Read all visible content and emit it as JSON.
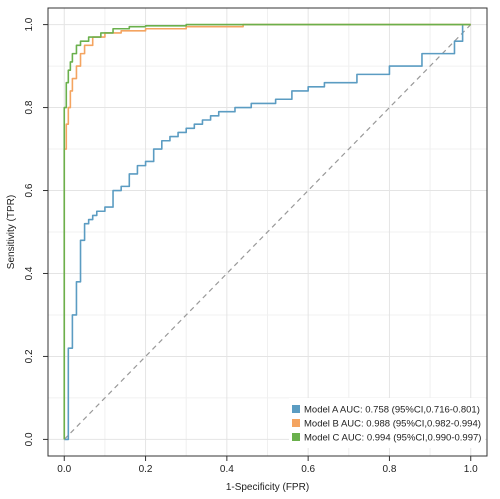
{
  "chart_data": {
    "type": "line",
    "xlabel": "1-Specificity (FPR)",
    "ylabel": "Sensitivity (TPR)",
    "xlim": [
      0,
      1
    ],
    "ylim": [
      0,
      1
    ],
    "xticks": [
      "0.0",
      "0.2",
      "0.4",
      "0.6",
      "0.8",
      "1.0"
    ],
    "yticks": [
      "0.0",
      "0.2",
      "0.4",
      "0.6",
      "0.8",
      "1.0"
    ],
    "grid": true,
    "legend_position": "bottom-right",
    "reference_line": {
      "from": [
        0,
        0
      ],
      "to": [
        1,
        1
      ],
      "style": "dashed",
      "color": "#999999"
    },
    "series": [
      {
        "name": "Model A AUC: 0.758 (95%CI,0.716-0.801)",
        "color": "#5b9cc2",
        "x": [
          0.0,
          0.01,
          0.01,
          0.02,
          0.02,
          0.03,
          0.03,
          0.04,
          0.04,
          0.05,
          0.05,
          0.06,
          0.06,
          0.07,
          0.07,
          0.08,
          0.08,
          0.1,
          0.1,
          0.12,
          0.12,
          0.14,
          0.14,
          0.16,
          0.16,
          0.18,
          0.18,
          0.2,
          0.2,
          0.22,
          0.22,
          0.24,
          0.24,
          0.26,
          0.26,
          0.28,
          0.28,
          0.3,
          0.3,
          0.32,
          0.32,
          0.34,
          0.34,
          0.36,
          0.36,
          0.38,
          0.38,
          0.42,
          0.42,
          0.46,
          0.46,
          0.52,
          0.52,
          0.56,
          0.56,
          0.6,
          0.6,
          0.64,
          0.64,
          0.72,
          0.72,
          0.8,
          0.8,
          0.88,
          0.88,
          0.96,
          0.96,
          0.98,
          0.98
        ],
        "y": [
          0.0,
          0.0,
          0.22,
          0.22,
          0.3,
          0.3,
          0.38,
          0.38,
          0.48,
          0.48,
          0.52,
          0.52,
          0.53,
          0.53,
          0.54,
          0.54,
          0.55,
          0.55,
          0.56,
          0.56,
          0.6,
          0.6,
          0.61,
          0.61,
          0.64,
          0.64,
          0.66,
          0.66,
          0.67,
          0.67,
          0.7,
          0.7,
          0.72,
          0.72,
          0.73,
          0.73,
          0.74,
          0.74,
          0.75,
          0.75,
          0.76,
          0.76,
          0.77,
          0.77,
          0.78,
          0.78,
          0.79,
          0.79,
          0.8,
          0.8,
          0.81,
          0.81,
          0.82,
          0.82,
          0.84,
          0.84,
          0.85,
          0.85,
          0.86,
          0.86,
          0.88,
          0.88,
          0.9,
          0.9,
          0.93,
          0.93,
          0.96,
          0.96,
          1.0
        ]
      },
      {
        "name": "Model B AUC: 0.988 (95%CI,0.982-0.994)",
        "color": "#f4a460",
        "x": [
          0.0,
          0.0,
          0.005,
          0.005,
          0.01,
          0.01,
          0.015,
          0.015,
          0.02,
          0.02,
          0.03,
          0.03,
          0.04,
          0.04,
          0.05,
          0.05,
          0.07,
          0.07,
          0.1,
          0.1,
          0.14,
          0.14,
          0.2,
          0.2,
          0.3,
          0.3,
          0.44,
          0.44,
          1.0
        ],
        "y": [
          0.0,
          0.7,
          0.7,
          0.76,
          0.76,
          0.8,
          0.8,
          0.84,
          0.84,
          0.87,
          0.87,
          0.9,
          0.9,
          0.93,
          0.93,
          0.95,
          0.95,
          0.97,
          0.97,
          0.98,
          0.98,
          0.985,
          0.985,
          0.99,
          0.99,
          0.995,
          0.995,
          1.0,
          1.0
        ]
      },
      {
        "name": "Model C AUC: 0.994 (95%CI,0.990-0.997)",
        "color": "#6ab04c",
        "x": [
          0.0,
          0.0,
          0.005,
          0.005,
          0.01,
          0.01,
          0.015,
          0.015,
          0.02,
          0.02,
          0.03,
          0.03,
          0.04,
          0.04,
          0.06,
          0.06,
          0.09,
          0.09,
          0.12,
          0.12,
          0.16,
          0.16,
          0.2,
          0.2,
          0.3,
          0.3,
          1.0
        ],
        "y": [
          0.0,
          0.8,
          0.8,
          0.86,
          0.86,
          0.89,
          0.89,
          0.91,
          0.91,
          0.93,
          0.93,
          0.95,
          0.95,
          0.96,
          0.96,
          0.97,
          0.97,
          0.98,
          0.98,
          0.99,
          0.99,
          0.995,
          0.995,
          0.997,
          0.997,
          1.0,
          1.0
        ]
      }
    ]
  }
}
